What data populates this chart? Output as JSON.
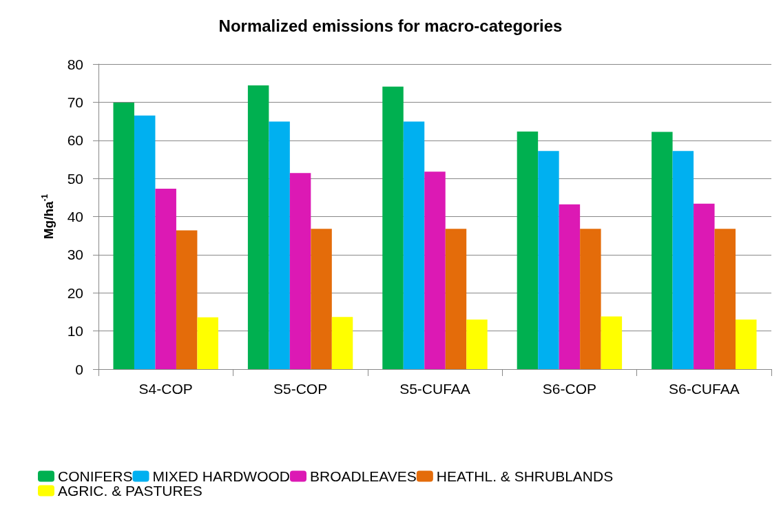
{
  "chart_data": {
    "type": "bar",
    "title": "Normalized emissions for macro-categories",
    "ylabel": "Mg/ha$^{-1}$",
    "categories": [
      "S4-COP",
      "S5-COP",
      "S5-CUFAA",
      "S6-COP",
      "S6-CUFAA"
    ],
    "series": [
      {
        "name": "CONIFERS",
        "color": "#00b050",
        "values": [
          69.9,
          74.4,
          74.1,
          62.3,
          62.2
        ]
      },
      {
        "name": "MIXED HARDWOOD",
        "color": "#00b0f0",
        "values": [
          66.5,
          64.9,
          64.9,
          57.2,
          57.2
        ]
      },
      {
        "name": "BROADLEAVES",
        "color": "#dc19b4",
        "values": [
          47.3,
          51.4,
          51.8,
          43.2,
          43.4
        ]
      },
      {
        "name": "HEATHL. & SHRUBLANDS",
        "color": "#e46c0a",
        "values": [
          36.4,
          36.8,
          36.8,
          36.8,
          36.8
        ]
      },
      {
        "name": "AGRIC. & PASTURES",
        "color": "#ffff00",
        "values": [
          13.6,
          13.7,
          13.0,
          13.8,
          13.0
        ]
      }
    ],
    "ylim": [
      0,
      80
    ],
    "yticks": [
      0,
      10,
      20,
      30,
      40,
      50,
      60,
      70,
      80
    ],
    "grid": "y",
    "legend": "bottom"
  }
}
